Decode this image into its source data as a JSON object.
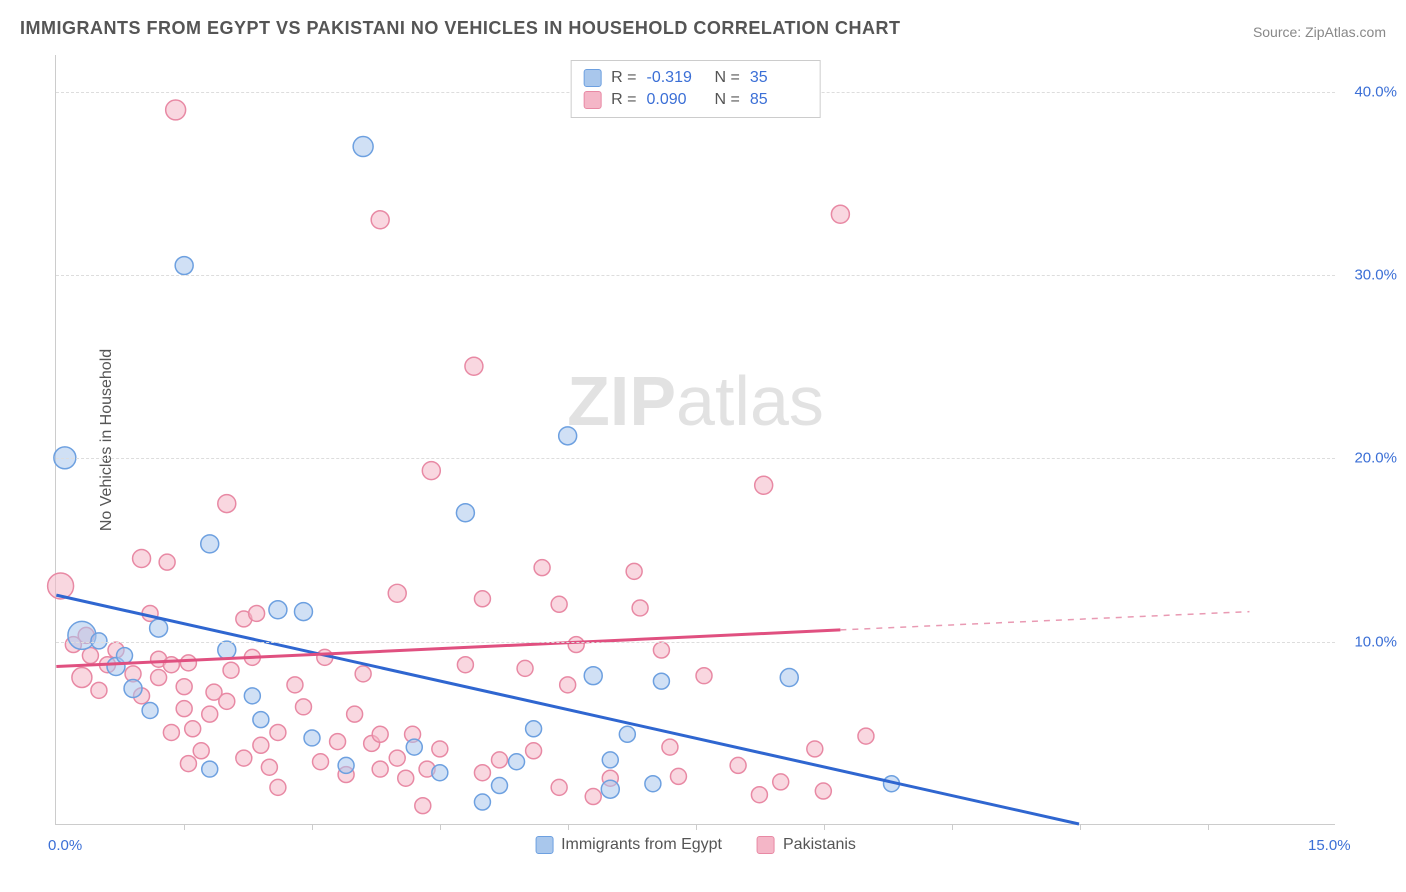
{
  "title": "IMMIGRANTS FROM EGYPT VS PAKISTANI NO VEHICLES IN HOUSEHOLD CORRELATION CHART",
  "source": "Source: ZipAtlas.com",
  "watermark_a": "ZIP",
  "watermark_b": "atlas",
  "chart": {
    "type": "scatter",
    "y_axis_label": "No Vehicles in Household",
    "xlim": [
      0,
      15
    ],
    "ylim": [
      0,
      42
    ],
    "x_ticks": [
      0.0,
      15.0
    ],
    "x_tick_labels": [
      "0.0%",
      "15.0%"
    ],
    "x_minor_ticks": [
      1.5,
      3.0,
      4.5,
      6.0,
      7.5,
      9.0,
      10.5,
      12.0,
      13.5
    ],
    "y_ticks": [
      10.0,
      20.0,
      30.0,
      40.0
    ],
    "y_tick_labels": [
      "10.0%",
      "20.0%",
      "30.0%",
      "40.0%"
    ],
    "background_color": "#ffffff",
    "grid_color": "#dddddd",
    "series": [
      {
        "name": "Immigrants from Egypt",
        "color_fill": "#a9c7ec",
        "color_stroke": "#6da0e0",
        "fill_opacity": 0.55,
        "r_label": "R =",
        "r": "-0.319",
        "n_label": "N =",
        "n": "35",
        "trend": {
          "x1": 0,
          "y1": 12.5,
          "x2": 12.0,
          "y2": 0.0,
          "color": "#2f66d0",
          "width": 3
        },
        "points": [
          {
            "x": 0.1,
            "y": 20.0,
            "r": 11
          },
          {
            "x": 0.3,
            "y": 10.3,
            "r": 14
          },
          {
            "x": 1.5,
            "y": 30.5,
            "r": 9
          },
          {
            "x": 3.6,
            "y": 37.0,
            "r": 10
          },
          {
            "x": 1.8,
            "y": 15.3,
            "r": 9
          },
          {
            "x": 1.2,
            "y": 10.7,
            "r": 9
          },
          {
            "x": 0.7,
            "y": 8.6,
            "r": 9
          },
          {
            "x": 0.9,
            "y": 7.4,
            "r": 9
          },
          {
            "x": 0.8,
            "y": 9.2,
            "r": 8
          },
          {
            "x": 1.1,
            "y": 6.2,
            "r": 8
          },
          {
            "x": 2.0,
            "y": 9.5,
            "r": 9
          },
          {
            "x": 2.3,
            "y": 7.0,
            "r": 8
          },
          {
            "x": 2.6,
            "y": 11.7,
            "r": 9
          },
          {
            "x": 2.4,
            "y": 5.7,
            "r": 8
          },
          {
            "x": 2.9,
            "y": 11.6,
            "r": 9
          },
          {
            "x": 3.0,
            "y": 4.7,
            "r": 8
          },
          {
            "x": 3.4,
            "y": 3.2,
            "r": 8
          },
          {
            "x": 4.8,
            "y": 17.0,
            "r": 9
          },
          {
            "x": 4.2,
            "y": 4.2,
            "r": 8
          },
          {
            "x": 4.5,
            "y": 2.8,
            "r": 8
          },
          {
            "x": 5.2,
            "y": 2.1,
            "r": 8
          },
          {
            "x": 5.4,
            "y": 3.4,
            "r": 8
          },
          {
            "x": 5.6,
            "y": 5.2,
            "r": 8
          },
          {
            "x": 6.0,
            "y": 21.2,
            "r": 9
          },
          {
            "x": 6.3,
            "y": 8.1,
            "r": 9
          },
          {
            "x": 6.5,
            "y": 3.5,
            "r": 8
          },
          {
            "x": 6.7,
            "y": 4.9,
            "r": 8
          },
          {
            "x": 6.5,
            "y": 1.9,
            "r": 9
          },
          {
            "x": 7.0,
            "y": 2.2,
            "r": 8
          },
          {
            "x": 7.1,
            "y": 7.8,
            "r": 8
          },
          {
            "x": 8.6,
            "y": 8.0,
            "r": 9
          },
          {
            "x": 9.8,
            "y": 2.2,
            "r": 8
          },
          {
            "x": 5.0,
            "y": 1.2,
            "r": 8
          },
          {
            "x": 1.8,
            "y": 3.0,
            "r": 8
          },
          {
            "x": 0.5,
            "y": 10.0,
            "r": 8
          }
        ]
      },
      {
        "name": "Pakistanis",
        "color_fill": "#f4b6c7",
        "color_stroke": "#e889a4",
        "fill_opacity": 0.55,
        "r_label": "R =",
        "r": "0.090",
        "n_label": "N =",
        "n": "85",
        "trend": {
          "x1": 0,
          "y1": 8.6,
          "x2": 9.2,
          "y2": 10.6,
          "color": "#e05080",
          "width": 3
        },
        "trend_ext": {
          "x1": 9.2,
          "y1": 10.6,
          "x2": 14.0,
          "y2": 11.6,
          "color": "#e99ab3",
          "width": 1.5,
          "dash": "6,6"
        },
        "points": [
          {
            "x": 0.05,
            "y": 13.0,
            "r": 13
          },
          {
            "x": 1.4,
            "y": 39.0,
            "r": 10
          },
          {
            "x": 3.8,
            "y": 33.0,
            "r": 9
          },
          {
            "x": 4.9,
            "y": 25.0,
            "r": 9
          },
          {
            "x": 4.4,
            "y": 19.3,
            "r": 9
          },
          {
            "x": 2.0,
            "y": 17.5,
            "r": 9
          },
          {
            "x": 1.0,
            "y": 14.5,
            "r": 9
          },
          {
            "x": 1.3,
            "y": 14.3,
            "r": 8
          },
          {
            "x": 8.3,
            "y": 18.5,
            "r": 9
          },
          {
            "x": 9.2,
            "y": 33.3,
            "r": 9
          },
          {
            "x": 5.7,
            "y": 14.0,
            "r": 8
          },
          {
            "x": 5.9,
            "y": 12.0,
            "r": 8
          },
          {
            "x": 5.0,
            "y": 12.3,
            "r": 8
          },
          {
            "x": 4.0,
            "y": 12.6,
            "r": 9
          },
          {
            "x": 0.3,
            "y": 8.0,
            "r": 10
          },
          {
            "x": 0.4,
            "y": 9.2,
            "r": 8
          },
          {
            "x": 0.5,
            "y": 7.3,
            "r": 8
          },
          {
            "x": 0.6,
            "y": 8.7,
            "r": 8
          },
          {
            "x": 0.7,
            "y": 9.5,
            "r": 8
          },
          {
            "x": 0.9,
            "y": 8.2,
            "r": 8
          },
          {
            "x": 1.0,
            "y": 7.0,
            "r": 8
          },
          {
            "x": 1.2,
            "y": 9.0,
            "r": 8
          },
          {
            "x": 1.2,
            "y": 8.0,
            "r": 8
          },
          {
            "x": 1.35,
            "y": 8.7,
            "r": 8
          },
          {
            "x": 1.5,
            "y": 7.5,
            "r": 8
          },
          {
            "x": 1.5,
            "y": 6.3,
            "r": 8
          },
          {
            "x": 1.55,
            "y": 8.8,
            "r": 8
          },
          {
            "x": 1.6,
            "y": 5.2,
            "r": 8
          },
          {
            "x": 1.7,
            "y": 4.0,
            "r": 8
          },
          {
            "x": 1.8,
            "y": 6.0,
            "r": 8
          },
          {
            "x": 1.85,
            "y": 7.2,
            "r": 8
          },
          {
            "x": 1.55,
            "y": 3.3,
            "r": 8
          },
          {
            "x": 2.0,
            "y": 6.7,
            "r": 8
          },
          {
            "x": 2.2,
            "y": 11.2,
            "r": 8
          },
          {
            "x": 2.3,
            "y": 9.1,
            "r": 8
          },
          {
            "x": 2.35,
            "y": 11.5,
            "r": 8
          },
          {
            "x": 2.4,
            "y": 4.3,
            "r": 8
          },
          {
            "x": 2.5,
            "y": 3.1,
            "r": 8
          },
          {
            "x": 2.6,
            "y": 5.0,
            "r": 8
          },
          {
            "x": 2.6,
            "y": 2.0,
            "r": 8
          },
          {
            "x": 2.8,
            "y": 7.6,
            "r": 8
          },
          {
            "x": 2.9,
            "y": 6.4,
            "r": 8
          },
          {
            "x": 3.15,
            "y": 9.1,
            "r": 8
          },
          {
            "x": 3.1,
            "y": 3.4,
            "r": 8
          },
          {
            "x": 3.3,
            "y": 4.5,
            "r": 8
          },
          {
            "x": 3.4,
            "y": 2.7,
            "r": 8
          },
          {
            "x": 3.5,
            "y": 6.0,
            "r": 8
          },
          {
            "x": 3.6,
            "y": 8.2,
            "r": 8
          },
          {
            "x": 3.7,
            "y": 4.4,
            "r": 8
          },
          {
            "x": 3.8,
            "y": 3.0,
            "r": 8
          },
          {
            "x": 3.8,
            "y": 4.9,
            "r": 8
          },
          {
            "x": 4.0,
            "y": 3.6,
            "r": 8
          },
          {
            "x": 4.1,
            "y": 2.5,
            "r": 8
          },
          {
            "x": 4.18,
            "y": 4.9,
            "r": 8
          },
          {
            "x": 4.3,
            "y": 1.0,
            "r": 8
          },
          {
            "x": 4.35,
            "y": 3.0,
            "r": 8
          },
          {
            "x": 4.5,
            "y": 4.1,
            "r": 8
          },
          {
            "x": 4.8,
            "y": 8.7,
            "r": 8
          },
          {
            "x": 5.0,
            "y": 2.8,
            "r": 8
          },
          {
            "x": 5.2,
            "y": 3.5,
            "r": 8
          },
          {
            "x": 5.5,
            "y": 8.5,
            "r": 8
          },
          {
            "x": 5.6,
            "y": 4.0,
            "r": 8
          },
          {
            "x": 5.9,
            "y": 2.0,
            "r": 8
          },
          {
            "x": 6.1,
            "y": 9.8,
            "r": 8
          },
          {
            "x": 6.3,
            "y": 1.5,
            "r": 8
          },
          {
            "x": 6.5,
            "y": 2.5,
            "r": 8
          },
          {
            "x": 6.78,
            "y": 13.8,
            "r": 8
          },
          {
            "x": 6.85,
            "y": 11.8,
            "r": 8
          },
          {
            "x": 7.1,
            "y": 9.5,
            "r": 8
          },
          {
            "x": 7.2,
            "y": 4.2,
            "r": 8
          },
          {
            "x": 7.3,
            "y": 2.6,
            "r": 8
          },
          {
            "x": 7.6,
            "y": 8.1,
            "r": 8
          },
          {
            "x": 8.0,
            "y": 3.2,
            "r": 8
          },
          {
            "x": 8.25,
            "y": 1.6,
            "r": 8
          },
          {
            "x": 8.5,
            "y": 2.3,
            "r": 8
          },
          {
            "x": 8.9,
            "y": 4.1,
            "r": 8
          },
          {
            "x": 9.5,
            "y": 4.8,
            "r": 8
          },
          {
            "x": 9.0,
            "y": 1.8,
            "r": 8
          },
          {
            "x": 0.2,
            "y": 9.8,
            "r": 8
          },
          {
            "x": 0.35,
            "y": 10.3,
            "r": 8
          },
          {
            "x": 6.0,
            "y": 7.6,
            "r": 8
          },
          {
            "x": 1.1,
            "y": 11.5,
            "r": 8
          },
          {
            "x": 2.05,
            "y": 8.4,
            "r": 8
          },
          {
            "x": 2.2,
            "y": 3.6,
            "r": 8
          },
          {
            "x": 1.35,
            "y": 5.0,
            "r": 8
          }
        ]
      }
    ]
  },
  "bottom_legend": [
    {
      "label": "Immigrants from Egypt",
      "fill": "#a9c7ec",
      "stroke": "#6da0e0"
    },
    {
      "label": "Pakistanis",
      "fill": "#f4b6c7",
      "stroke": "#e889a4"
    }
  ]
}
